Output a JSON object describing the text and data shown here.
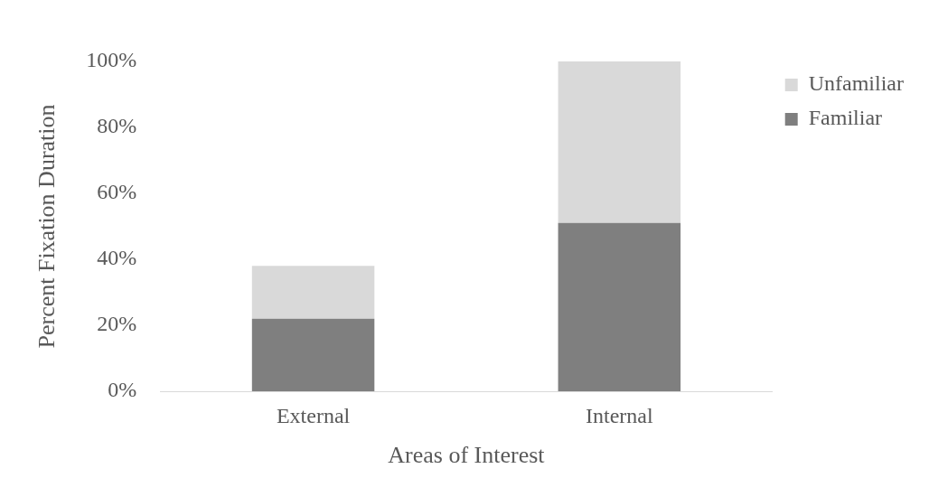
{
  "chart_data": {
    "type": "bar",
    "xlabel": "Areas of Interest",
    "ylabel": "Percent Fixation Duration",
    "categories": [
      "External",
      "Internal"
    ],
    "series": [
      {
        "name": "Familiar",
        "color": "#7f7f7f",
        "values": [
          22,
          51
        ]
      },
      {
        "name": "Unfamiliar",
        "color": "#d9d9d9",
        "values": [
          16,
          49
        ]
      }
    ],
    "stacked": true,
    "ylim": [
      0,
      100
    ],
    "yticks": [
      {
        "value": 0,
        "label": "0%"
      },
      {
        "value": 20,
        "label": "20%"
      },
      {
        "value": 40,
        "label": "40%"
      },
      {
        "value": 60,
        "label": "60%"
      },
      {
        "value": 80,
        "label": "80%"
      },
      {
        "value": 100,
        "label": "100%"
      }
    ],
    "grid": false,
    "legend": "top right"
  }
}
